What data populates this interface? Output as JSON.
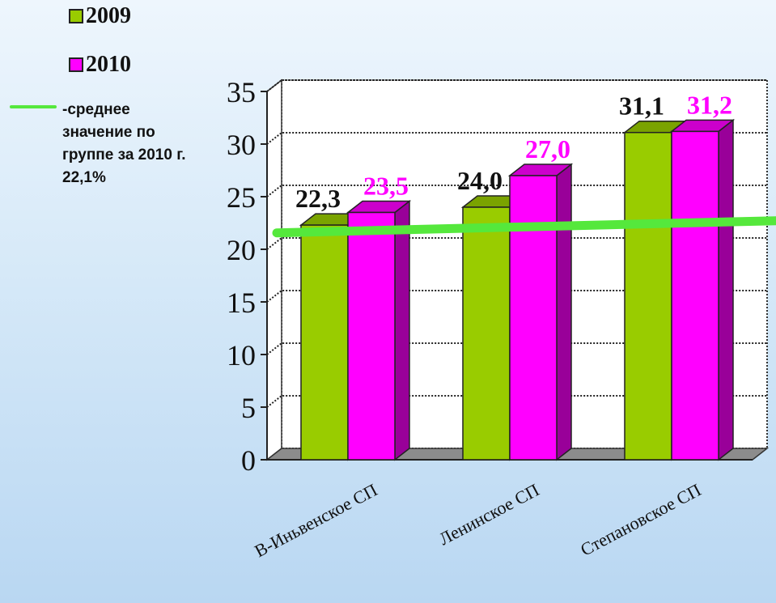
{
  "legend": {
    "series2009": "2009",
    "series2010": "2010",
    "avg_text": "-среднее значение по группе за 2010 г. 22,1%"
  },
  "colors": {
    "series2009": "#99cc00",
    "series2010": "#ff00ff",
    "average_line": "#55e83c"
  },
  "chart_data": {
    "type": "bar",
    "categories": [
      "В-Иньвенское СП",
      "Ленинское СП",
      "Степановское СП"
    ],
    "series": [
      {
        "name": "2009",
        "values": [
          22.3,
          24.0,
          31.1
        ],
        "labels": [
          "22,3",
          "24,0",
          "31,1"
        ]
      },
      {
        "name": "2010",
        "values": [
          23.5,
          27.0,
          31.2
        ],
        "labels": [
          "23,5",
          "27,0",
          "31,2"
        ]
      }
    ],
    "yticks": [
      "0",
      "5",
      "10",
      "15",
      "20",
      "25",
      "30",
      "35"
    ],
    "ylim": [
      0,
      35
    ],
    "average_line": 22.1,
    "grid": true,
    "legend_position": "top-left",
    "style": "3d"
  }
}
